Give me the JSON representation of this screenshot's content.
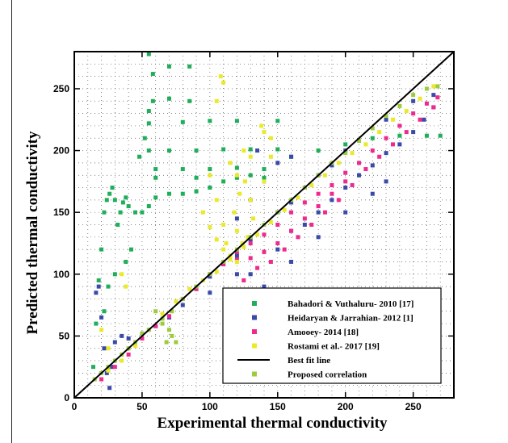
{
  "chart_data": {
    "type": "scatter",
    "title": "",
    "xlabel": "Experimental thermal conductivity",
    "ylabel": "Predicted thermal conductivity",
    "xlim": [
      0,
      280
    ],
    "ylim": [
      0,
      280
    ],
    "x_ticks": [
      0,
      50,
      100,
      150,
      200,
      250
    ],
    "y_ticks": [
      0,
      50,
      100,
      150,
      200,
      250
    ],
    "grid": true,
    "legend_position": "bottom-right",
    "series": [
      {
        "name": "Bahadori & Vuthaluru- 2010 [17]",
        "color": "#1fae5a",
        "marker": "square",
        "points": [
          [
            14,
            25
          ],
          [
            16,
            60
          ],
          [
            18,
            95
          ],
          [
            20,
            120
          ],
          [
            22,
            150
          ],
          [
            24,
            160
          ],
          [
            26,
            165
          ],
          [
            28,
            170
          ],
          [
            30,
            160
          ],
          [
            32,
            140
          ],
          [
            34,
            150
          ],
          [
            36,
            158
          ],
          [
            38,
            162
          ],
          [
            40,
            155
          ],
          [
            45,
            150
          ],
          [
            50,
            150
          ],
          [
            55,
            155
          ],
          [
            60,
            162
          ],
          [
            70,
            165
          ],
          [
            80,
            165
          ],
          [
            90,
            167
          ],
          [
            100,
            170
          ],
          [
            110,
            175
          ],
          [
            120,
            178
          ],
          [
            130,
            180
          ],
          [
            140,
            185
          ],
          [
            160,
            195
          ],
          [
            180,
            200
          ],
          [
            200,
            205
          ],
          [
            220,
            210
          ],
          [
            240,
            212
          ],
          [
            260,
            212
          ],
          [
            270,
            212
          ],
          [
            55,
            200
          ],
          [
            70,
            200
          ],
          [
            90,
            200
          ],
          [
            110,
            201
          ],
          [
            130,
            201
          ],
          [
            150,
            201
          ],
          [
            55,
            222
          ],
          [
            80,
            223
          ],
          [
            100,
            224
          ],
          [
            120,
            224
          ],
          [
            150,
            224
          ],
          [
            58,
            240
          ],
          [
            70,
            242
          ],
          [
            85,
            240
          ],
          [
            58,
            262
          ],
          [
            70,
            268
          ],
          [
            85,
            268
          ],
          [
            60,
            185
          ],
          [
            80,
            185
          ],
          [
            100,
            185
          ],
          [
            120,
            186
          ],
          [
            60,
            178
          ],
          [
            90,
            178
          ],
          [
            120,
            179
          ],
          [
            140,
            178
          ],
          [
            55,
            278
          ],
          [
            55,
            232
          ],
          [
            52,
            210
          ],
          [
            48,
            195
          ],
          [
            42,
            120
          ],
          [
            38,
            110
          ],
          [
            30,
            100
          ],
          [
            25,
            90
          ],
          [
            22,
            70
          ]
        ]
      },
      {
        "name": "Heidaryan & Jarrahian- 2012 [1]",
        "color": "#3a4aa8",
        "marker": "square",
        "points": [
          [
            16,
            85
          ],
          [
            18,
            90
          ],
          [
            20,
            65
          ],
          [
            22,
            40
          ],
          [
            24,
            20
          ],
          [
            26,
            8
          ],
          [
            28,
            25
          ],
          [
            30,
            45
          ],
          [
            35,
            50
          ],
          [
            40,
            48
          ],
          [
            50,
            52
          ],
          [
            60,
            58
          ],
          [
            70,
            65
          ],
          [
            80,
            75
          ],
          [
            90,
            88
          ],
          [
            100,
            98
          ],
          [
            110,
            108
          ],
          [
            120,
            115
          ],
          [
            130,
            128
          ],
          [
            140,
            140
          ],
          [
            150,
            150
          ],
          [
            160,
            158
          ],
          [
            170,
            170
          ],
          [
            180,
            180
          ],
          [
            190,
            188
          ],
          [
            200,
            200
          ],
          [
            210,
            208
          ],
          [
            230,
            225
          ],
          [
            250,
            240
          ],
          [
            265,
            245
          ],
          [
            140,
            90
          ],
          [
            160,
            110
          ],
          [
            180,
            130
          ],
          [
            200,
            150
          ],
          [
            220,
            165
          ],
          [
            230,
            175
          ],
          [
            130,
            100
          ],
          [
            150,
            120
          ],
          [
            170,
            140
          ],
          [
            190,
            160
          ],
          [
            210,
            180
          ],
          [
            230,
            198
          ],
          [
            250,
            215
          ],
          [
            265,
            235
          ],
          [
            100,
            85
          ],
          [
            120,
            100
          ],
          [
            140,
            118
          ],
          [
            160,
            135
          ],
          [
            180,
            150
          ],
          [
            200,
            170
          ],
          [
            220,
            188
          ],
          [
            240,
            205
          ],
          [
            258,
            225
          ],
          [
            120,
            145
          ],
          [
            130,
            160
          ],
          [
            140,
            175
          ],
          [
            150,
            190
          ],
          [
            160,
            195
          ],
          [
            135,
            200
          ]
        ]
      },
      {
        "name": "Amooey- 2014 [18]",
        "color": "#ee2a8e",
        "marker": "square",
        "points": [
          [
            20,
            15
          ],
          [
            30,
            25
          ],
          [
            40,
            35
          ],
          [
            50,
            48
          ],
          [
            60,
            58
          ],
          [
            70,
            66
          ],
          [
            80,
            80
          ],
          [
            90,
            88
          ],
          [
            100,
            100
          ],
          [
            110,
            108
          ],
          [
            120,
            118
          ],
          [
            130,
            125
          ],
          [
            140,
            132
          ],
          [
            150,
            140
          ],
          [
            160,
            150
          ],
          [
            170,
            158
          ],
          [
            180,
            165
          ],
          [
            190,
            172
          ],
          [
            200,
            182
          ],
          [
            210,
            190
          ],
          [
            220,
            200
          ],
          [
            230,
            210
          ],
          [
            240,
            220
          ],
          [
            250,
            230
          ],
          [
            260,
            238
          ],
          [
            268,
            243
          ],
          [
            110,
            110
          ],
          [
            120,
            112
          ],
          [
            130,
            113
          ],
          [
            140,
            118
          ],
          [
            150,
            125
          ],
          [
            160,
            135
          ],
          [
            170,
            145
          ],
          [
            180,
            155
          ],
          [
            190,
            165
          ],
          [
            200,
            175
          ],
          [
            125,
            95
          ],
          [
            135,
            105
          ],
          [
            145,
            110
          ],
          [
            155,
            120
          ],
          [
            165,
            130
          ],
          [
            175,
            140
          ],
          [
            185,
            150
          ],
          [
            195,
            160
          ],
          [
            205,
            172
          ],
          [
            215,
            185
          ],
          [
            225,
            195
          ],
          [
            235,
            205
          ],
          [
            245,
            215
          ],
          [
            255,
            225
          ],
          [
            265,
            235
          ]
        ]
      },
      {
        "name": "Rostami et al.- 2017 [19]",
        "color": "#eaea2a",
        "marker": "square",
        "points": [
          [
            15,
            15
          ],
          [
            25,
            22
          ],
          [
            35,
            30
          ],
          [
            45,
            42
          ],
          [
            55,
            55
          ],
          [
            65,
            68
          ],
          [
            75,
            78
          ],
          [
            85,
            88
          ],
          [
            95,
            95
          ],
          [
            105,
            102
          ],
          [
            115,
            112
          ],
          [
            125,
            122
          ],
          [
            135,
            132
          ],
          [
            145,
            142
          ],
          [
            155,
            152
          ],
          [
            165,
            162
          ],
          [
            175,
            172
          ],
          [
            185,
            180
          ],
          [
            195,
            190
          ],
          [
            205,
            198
          ],
          [
            215,
            205
          ],
          [
            225,
            215
          ],
          [
            235,
            225
          ],
          [
            245,
            232
          ],
          [
            255,
            242
          ],
          [
            265,
            252
          ],
          [
            100,
            180
          ],
          [
            105,
            160
          ],
          [
            110,
            140
          ],
          [
            112,
            125
          ],
          [
            115,
            115
          ],
          [
            120,
            110
          ],
          [
            118,
            150
          ],
          [
            122,
            165
          ],
          [
            126,
            175
          ],
          [
            130,
            160
          ],
          [
            132,
            145
          ],
          [
            128,
            130
          ],
          [
            124,
            125
          ],
          [
            120,
            135
          ],
          [
            95,
            150
          ],
          [
            100,
            138
          ],
          [
            105,
            128
          ],
          [
            110,
            120
          ],
          [
            138,
            220
          ],
          [
            140,
            215
          ],
          [
            145,
            210
          ],
          [
            130,
            195
          ],
          [
            120,
            180
          ],
          [
            115,
            190
          ],
          [
            105,
            240
          ],
          [
            108,
            260
          ],
          [
            110,
            255
          ],
          [
            140,
            175
          ],
          [
            145,
            195
          ],
          [
            125,
            200
          ],
          [
            35,
            100
          ],
          [
            38,
            90
          ],
          [
            20,
            55
          ],
          [
            25,
            40
          ]
        ]
      },
      {
        "name": "Best fit line",
        "color": "#000000",
        "marker": "line",
        "points": [
          [
            0,
            0
          ],
          [
            280,
            280
          ]
        ]
      },
      {
        "name": "Proposed correlation",
        "color": "#9ccc3c",
        "marker": "square",
        "points": [
          [
            15,
            15
          ],
          [
            25,
            25
          ],
          [
            35,
            35
          ],
          [
            45,
            45
          ],
          [
            55,
            55
          ],
          [
            65,
            64
          ],
          [
            72,
            70
          ],
          [
            80,
            80
          ],
          [
            90,
            90
          ],
          [
            100,
            100
          ],
          [
            110,
            110
          ],
          [
            120,
            120
          ],
          [
            130,
            130
          ],
          [
            140,
            140
          ],
          [
            150,
            150
          ],
          [
            160,
            160
          ],
          [
            170,
            170
          ],
          [
            180,
            180
          ],
          [
            190,
            190
          ],
          [
            200,
            198
          ],
          [
            210,
            208
          ],
          [
            220,
            218
          ],
          [
            230,
            228
          ],
          [
            240,
            236
          ],
          [
            250,
            245
          ],
          [
            260,
            250
          ],
          [
            268,
            252
          ],
          [
            60,
            70
          ],
          [
            65,
            60
          ],
          [
            70,
            55
          ],
          [
            72,
            50
          ],
          [
            75,
            45
          ],
          [
            68,
            45
          ],
          [
            50,
            52
          ],
          [
            40,
            40
          ],
          [
            30,
            30
          ],
          [
            20,
            20
          ]
        ]
      }
    ]
  }
}
